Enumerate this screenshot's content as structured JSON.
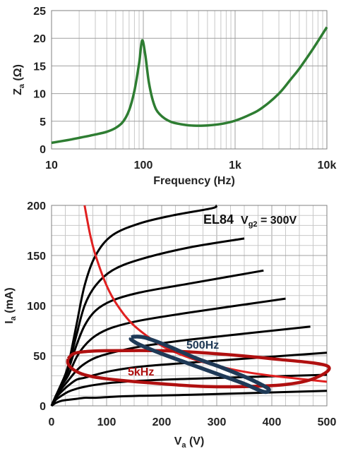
{
  "chart_data": [
    {
      "type": "line",
      "xlabel": "Frequency (Hz)",
      "ylabel_main": "Z",
      "ylabel_sub": "a",
      "ylabel_unit": " (Ω)",
      "x_scale": "log",
      "xlim": [
        10,
        10000
      ],
      "ylim": [
        0,
        25
      ],
      "grid": true,
      "x_ticks": [
        {
          "value": 10,
          "label": "10"
        },
        {
          "value": 100,
          "label": "100"
        },
        {
          "value": 1000,
          "label": "1k"
        },
        {
          "value": 10000,
          "label": "10k"
        }
      ],
      "y_ticks": [
        {
          "value": 0,
          "label": "0"
        },
        {
          "value": 5,
          "label": "5"
        },
        {
          "value": 10,
          "label": "10"
        },
        {
          "value": 15,
          "label": "15"
        },
        {
          "value": 20,
          "label": "20"
        },
        {
          "value": 25,
          "label": "25"
        }
      ],
      "series": [
        {
          "color": "#2e7d32",
          "points": [
            [
              10,
              1.1
            ],
            [
              15,
              1.6
            ],
            [
              20,
              2.0
            ],
            [
              30,
              2.6
            ],
            [
              40,
              3.1
            ],
            [
              50,
              3.8
            ],
            [
              60,
              4.9
            ],
            [
              70,
              7.0
            ],
            [
              80,
              10.5
            ],
            [
              90,
              15.5
            ],
            [
              97,
              19.6
            ],
            [
              105,
              17.0
            ],
            [
              115,
              12.0
            ],
            [
              130,
              8.2
            ],
            [
              150,
              6.3
            ],
            [
              200,
              4.9
            ],
            [
              300,
              4.3
            ],
            [
              400,
              4.2
            ],
            [
              500,
              4.25
            ],
            [
              700,
              4.5
            ],
            [
              1000,
              5.1
            ],
            [
              1500,
              6.3
            ],
            [
              2000,
              7.5
            ],
            [
              3000,
              10.0
            ],
            [
              4000,
              12.5
            ],
            [
              5000,
              14.5
            ],
            [
              7000,
              18.0
            ],
            [
              10000,
              22.0
            ]
          ]
        }
      ]
    },
    {
      "type": "line",
      "xlabel_main": "V",
      "xlabel_sub": "a",
      "xlabel_unit": " (V)",
      "ylabel_main": "I",
      "ylabel_sub": "a",
      "ylabel_unit": " (mA)",
      "xlim": [
        0,
        500
      ],
      "ylim": [
        0,
        200
      ],
      "grid": true,
      "x_ticks": [
        0,
        100,
        200,
        300,
        400,
        500
      ],
      "y_ticks": [
        0,
        50,
        100,
        150,
        200
      ],
      "annotation": {
        "tube": "EL84",
        "v_main": "V",
        "v_sub": "g2",
        "v_rest": " = 300V"
      },
      "labels": [
        {
          "text": "500Hz",
          "color": "#1f3a57"
        },
        {
          "text": "5kHz",
          "color": "#b01010"
        }
      ],
      "plate_curves": [
        [
          [
            0,
            0
          ],
          [
            8,
            10
          ],
          [
            18,
            22
          ],
          [
            30,
            40
          ],
          [
            45,
            80
          ],
          [
            60,
            120
          ],
          [
            80,
            150
          ],
          [
            110,
            170
          ],
          [
            160,
            182
          ],
          [
            220,
            190
          ],
          [
            290,
            197
          ],
          [
            300,
            200
          ]
        ],
        [
          [
            0,
            0
          ],
          [
            8,
            10
          ],
          [
            18,
            22
          ],
          [
            30,
            38
          ],
          [
            45,
            70
          ],
          [
            60,
            100
          ],
          [
            80,
            120
          ],
          [
            110,
            135
          ],
          [
            160,
            146
          ],
          [
            250,
            158
          ],
          [
            350,
            167
          ]
        ],
        [
          [
            0,
            0
          ],
          [
            8,
            10
          ],
          [
            18,
            22
          ],
          [
            30,
            35
          ],
          [
            45,
            60
          ],
          [
            60,
            80
          ],
          [
            80,
            95
          ],
          [
            110,
            105
          ],
          [
            160,
            113
          ],
          [
            250,
            122
          ],
          [
            385,
            135
          ]
        ],
        [
          [
            0,
            0
          ],
          [
            8,
            10
          ],
          [
            18,
            20
          ],
          [
            30,
            30
          ],
          [
            45,
            48
          ],
          [
            60,
            60
          ],
          [
            80,
            70
          ],
          [
            110,
            78
          ],
          [
            160,
            85
          ],
          [
            250,
            93
          ],
          [
            425,
            107
          ]
        ],
        [
          [
            0,
            0
          ],
          [
            8,
            9
          ],
          [
            18,
            17
          ],
          [
            30,
            25
          ],
          [
            45,
            35
          ],
          [
            60,
            42
          ],
          [
            80,
            48
          ],
          [
            110,
            53
          ],
          [
            160,
            59
          ],
          [
            250,
            66
          ],
          [
            470,
            79
          ]
        ],
        [
          [
            0,
            0
          ],
          [
            8,
            8
          ],
          [
            18,
            14
          ],
          [
            30,
            20
          ],
          [
            45,
            26
          ],
          [
            60,
            28
          ],
          [
            80,
            31
          ],
          [
            110,
            35
          ],
          [
            160,
            39
          ],
          [
            250,
            43
          ],
          [
            500,
            53
          ]
        ],
        [
          [
            0,
            0
          ],
          [
            8,
            6
          ],
          [
            18,
            10
          ],
          [
            30,
            14
          ],
          [
            45,
            17
          ],
          [
            60,
            19
          ],
          [
            80,
            21
          ],
          [
            110,
            23
          ],
          [
            160,
            25
          ],
          [
            250,
            27
          ],
          [
            500,
            31
          ]
        ],
        [
          [
            0,
            0
          ],
          [
            8,
            3
          ],
          [
            18,
            5
          ],
          [
            30,
            6
          ],
          [
            45,
            7
          ],
          [
            60,
            8
          ],
          [
            80,
            8
          ],
          [
            110,
            9
          ],
          [
            160,
            10
          ],
          [
            250,
            11
          ],
          [
            500,
            15
          ]
        ]
      ],
      "power_hyperbola": {
        "color": "#e02020",
        "points": [
          [
            60,
            200
          ],
          [
            70,
            171
          ],
          [
            80,
            150
          ],
          [
            100,
            120
          ],
          [
            120,
            100
          ],
          [
            150,
            80
          ],
          [
            200,
            60
          ],
          [
            250,
            48
          ],
          [
            300,
            40
          ],
          [
            350,
            34
          ],
          [
            400,
            30
          ],
          [
            450,
            27
          ],
          [
            500,
            24
          ]
        ]
      },
      "load_5k": {
        "color": "#b01010",
        "points": [
          [
            30,
            47
          ],
          [
            40,
            52
          ],
          [
            60,
            54
          ],
          [
            100,
            55
          ],
          [
            200,
            55
          ],
          [
            300,
            52
          ],
          [
            400,
            47
          ],
          [
            500,
            40
          ],
          [
            480,
            28
          ],
          [
            420,
            21
          ],
          [
            300,
            19
          ],
          [
            200,
            22
          ],
          [
            100,
            27
          ],
          [
            60,
            31
          ],
          [
            40,
            36
          ],
          [
            30,
            42
          ],
          [
            30,
            47
          ]
        ]
      },
      "load_500": {
        "color": "#1f3a57",
        "points": [
          [
            145,
            68
          ],
          [
            150,
            69
          ],
          [
            170,
            68
          ],
          [
            210,
            60
          ],
          [
            260,
            48
          ],
          [
            310,
            38
          ],
          [
            355,
            28
          ],
          [
            385,
            20
          ],
          [
            395,
            16
          ],
          [
            385,
            14
          ],
          [
            350,
            22
          ],
          [
            300,
            32
          ],
          [
            250,
            42
          ],
          [
            200,
            52
          ],
          [
            160,
            61
          ],
          [
            145,
            66
          ],
          [
            145,
            68
          ]
        ]
      }
    }
  ]
}
